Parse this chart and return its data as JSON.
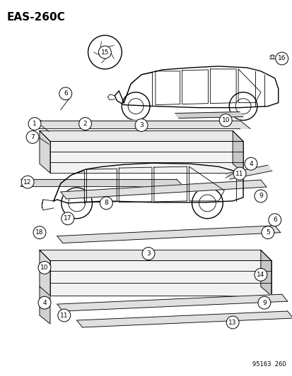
{
  "title": "EAS-260C",
  "footer": "95163  260",
  "bg_color": "#ffffff",
  "line_color": "#000000",
  "title_fontsize": 11,
  "figsize": [
    4.14,
    5.33
  ],
  "dpi": 100
}
